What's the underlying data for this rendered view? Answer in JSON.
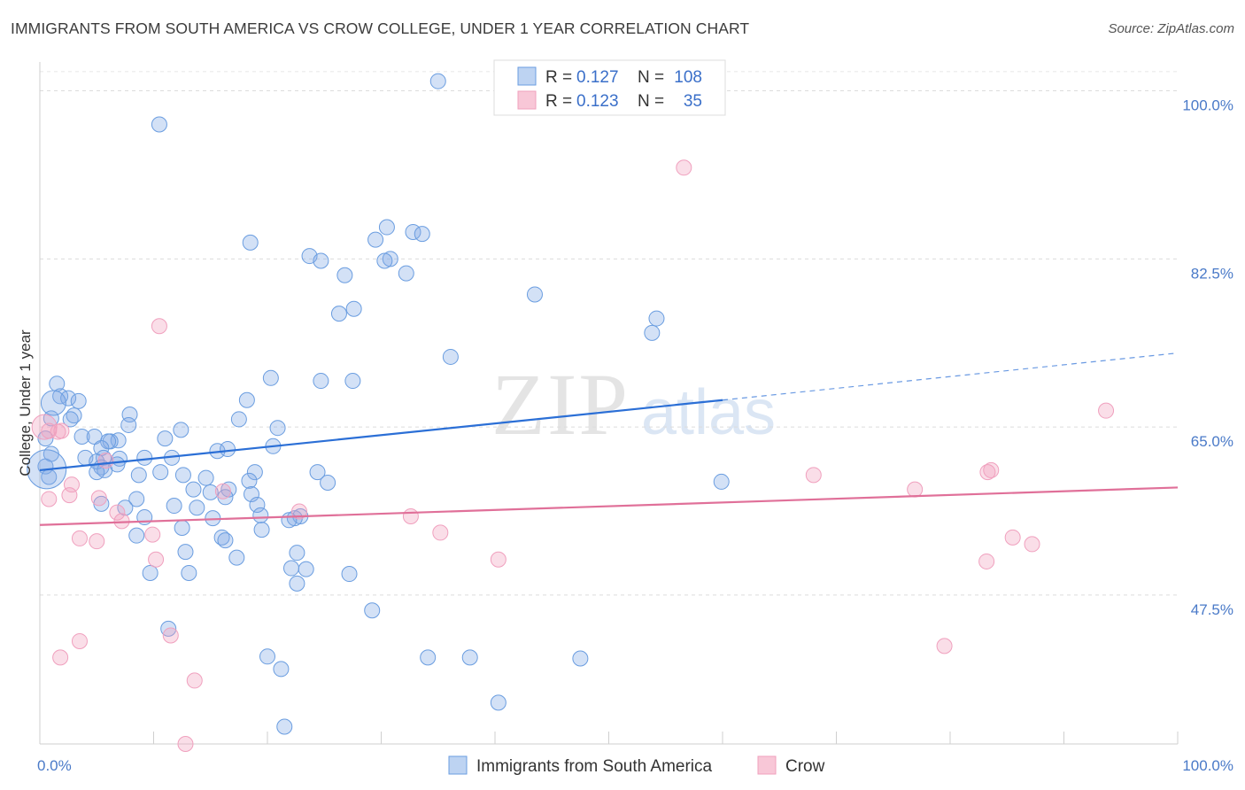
{
  "title": "IMMIGRANTS FROM SOUTH AMERICA VS CROW COLLEGE, UNDER 1 YEAR CORRELATION CHART",
  "source": "Source: ZipAtlas.com",
  "watermark": {
    "zip": "ZIP",
    "atlas": "atlas"
  },
  "chart_data": {
    "type": "scatter",
    "ylabel": "College, Under 1 year",
    "xlim": [
      0,
      100
    ],
    "ylim": [
      32,
      103
    ],
    "x_tick_labels": [
      {
        "value": 0,
        "label": "0.0%"
      },
      {
        "value": 100,
        "label": "100.0%"
      }
    ],
    "y_tick_labels": [
      {
        "value": 100,
        "label": "100.0%"
      },
      {
        "value": 82.5,
        "label": "82.5%"
      },
      {
        "value": 65,
        "label": "65.0%"
      },
      {
        "value": 47.5,
        "label": "47.5%"
      }
    ],
    "legend": [
      {
        "r_label": "R =",
        "r_value": "0.127",
        "n_label": "N =",
        "n_value": "108"
      },
      {
        "r_label": "R =",
        "r_value": "0.123",
        "n_label": "N =",
        "n_value": "35"
      }
    ],
    "series": [
      {
        "name": "Immigrants from South America",
        "color": "#6a9de0",
        "trend": {
          "x0": 0,
          "y0": 60.5,
          "x1": 60,
          "y1": 67.8,
          "dash_x1": 100,
          "dash_y1": 72.7
        },
        "points": [
          [
            35,
            101
          ],
          [
            10.5,
            96.5
          ],
          [
            32.8,
            85.3
          ],
          [
            33.6,
            85.1
          ],
          [
            30.5,
            85.8
          ],
          [
            29.5,
            84.5
          ],
          [
            18.5,
            84.2
          ],
          [
            32.2,
            81
          ],
          [
            30.8,
            82.5
          ],
          [
            30.3,
            82.3
          ],
          [
            23.7,
            82.8
          ],
          [
            24.7,
            82.3
          ],
          [
            26.8,
            80.8
          ],
          [
            43.5,
            78.8
          ],
          [
            27.6,
            77.3
          ],
          [
            26.3,
            76.8
          ],
          [
            54.2,
            76.3
          ],
          [
            53.8,
            74.8
          ],
          [
            36.1,
            72.3
          ],
          [
            20.3,
            70.1
          ],
          [
            24.7,
            69.8
          ],
          [
            27.5,
            69.8
          ],
          [
            1.5,
            69.5
          ],
          [
            1.8,
            68.2
          ],
          [
            2.5,
            68
          ],
          [
            3.4,
            67.7
          ],
          [
            3,
            66.2
          ],
          [
            7.9,
            66.3
          ],
          [
            2.7,
            65.8
          ],
          [
            17.5,
            65.8
          ],
          [
            18.2,
            67.8
          ],
          [
            7.8,
            65.2
          ],
          [
            12.4,
            64.7
          ],
          [
            20.9,
            64.9
          ],
          [
            3.7,
            64
          ],
          [
            4.8,
            64
          ],
          [
            6.9,
            63.6
          ],
          [
            6.2,
            63.5
          ],
          [
            11,
            63.8
          ],
          [
            6,
            63.5
          ],
          [
            5.4,
            62.8
          ],
          [
            20.5,
            63
          ],
          [
            15.6,
            62.5
          ],
          [
            16.5,
            62.7
          ],
          [
            4,
            61.8
          ],
          [
            5.6,
            61.8
          ],
          [
            9.2,
            61.8
          ],
          [
            7,
            61.7
          ],
          [
            11.6,
            61.8
          ],
          [
            5,
            61.4
          ],
          [
            6.8,
            61.1
          ],
          [
            5.4,
            60.8
          ],
          [
            5.7,
            60.5
          ],
          [
            5,
            60.3
          ],
          [
            8.7,
            60
          ],
          [
            10.6,
            60.3
          ],
          [
            12.6,
            60
          ],
          [
            18.9,
            60.3
          ],
          [
            24.4,
            60.3
          ],
          [
            14.6,
            59.7
          ],
          [
            18.4,
            59.4
          ],
          [
            25.3,
            59.2
          ],
          [
            13.5,
            58.5
          ],
          [
            16.6,
            58.5
          ],
          [
            15,
            58.2
          ],
          [
            16.3,
            57.7
          ],
          [
            18.6,
            58
          ],
          [
            8.5,
            57.5
          ],
          [
            5.4,
            57
          ],
          [
            7.5,
            56.6
          ],
          [
            11.8,
            56.8
          ],
          [
            19.1,
            56.9
          ],
          [
            13.8,
            56.6
          ],
          [
            15.2,
            55.5
          ],
          [
            19.4,
            55.8
          ],
          [
            22.9,
            55.7
          ],
          [
            22.4,
            55.5
          ],
          [
            21.9,
            55.3
          ],
          [
            9.2,
            55.6
          ],
          [
            12.5,
            54.5
          ],
          [
            19.5,
            54.3
          ],
          [
            16,
            53.5
          ],
          [
            16.3,
            53.2
          ],
          [
            8.5,
            53.7
          ],
          [
            12.8,
            52
          ],
          [
            17.3,
            51.4
          ],
          [
            22.6,
            51.9
          ],
          [
            22.1,
            50.3
          ],
          [
            23.4,
            50.2
          ],
          [
            9.7,
            49.8
          ],
          [
            13.1,
            49.8
          ],
          [
            27.2,
            49.7
          ],
          [
            22.6,
            48.7
          ],
          [
            59.9,
            59.3
          ],
          [
            29.2,
            45.9
          ],
          [
            11.3,
            44
          ],
          [
            20,
            41.1
          ],
          [
            34.1,
            41
          ],
          [
            37.8,
            41
          ],
          [
            47.5,
            40.9
          ],
          [
            21.2,
            39.8
          ],
          [
            40.3,
            36.3
          ],
          [
            21.5,
            33.8
          ],
          [
            0.5,
            60.9
          ],
          [
            0.8,
            59.8
          ],
          [
            1,
            65.9
          ],
          [
            0.5,
            63.8
          ],
          [
            1,
            62.2
          ]
        ]
      },
      {
        "name": "Crow",
        "color": "#f0a0be",
        "trend": {
          "x0": 0,
          "y0": 54.8,
          "x1": 100,
          "y1": 58.7
        },
        "points": [
          [
            56.6,
            92
          ],
          [
            10.5,
            75.5
          ],
          [
            93.7,
            66.7
          ],
          [
            1.6,
            64.5
          ],
          [
            0.8,
            64.6
          ],
          [
            1.9,
            64.6
          ],
          [
            68,
            60
          ],
          [
            83.3,
            60.3
          ],
          [
            83.6,
            60.5
          ],
          [
            2.8,
            59
          ],
          [
            76.9,
            58.5
          ],
          [
            0.8,
            57.5
          ],
          [
            2.6,
            57.9
          ],
          [
            5.2,
            57.6
          ],
          [
            6.8,
            56.1
          ],
          [
            7.2,
            55.2
          ],
          [
            22.8,
            56.2
          ],
          [
            16.1,
            58.3
          ],
          [
            32.6,
            55.7
          ],
          [
            3.5,
            53.4
          ],
          [
            5,
            53.1
          ],
          [
            9.9,
            53.8
          ],
          [
            35.2,
            54
          ],
          [
            10.2,
            51.2
          ],
          [
            40.3,
            51.2
          ],
          [
            85.5,
            53.5
          ],
          [
            87.2,
            52.8
          ],
          [
            83.2,
            51
          ],
          [
            1.8,
            41
          ],
          [
            3.5,
            42.7
          ],
          [
            11.5,
            43.3
          ],
          [
            13.6,
            38.6
          ],
          [
            79.5,
            42.2
          ],
          [
            12.8,
            32
          ],
          [
            5.8,
            61.5
          ]
        ]
      }
    ]
  }
}
